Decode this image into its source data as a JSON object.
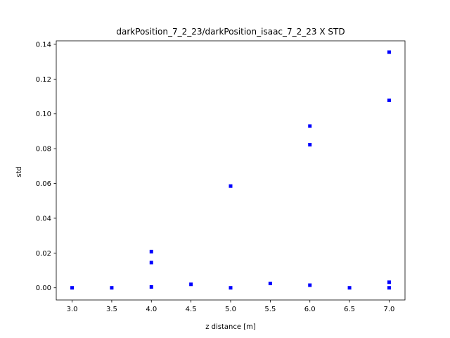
{
  "chart_data": {
    "type": "scatter",
    "title": "darkPosition_7_2_23/darkPosition_isaac_7_2_23 X STD",
    "xlabel": "z distance [m]",
    "ylabel": "std",
    "xlim": [
      2.8,
      7.2
    ],
    "ylim": [
      -0.007,
      0.142
    ],
    "xticks": [
      3.0,
      3.5,
      4.0,
      4.5,
      5.0,
      5.5,
      6.0,
      6.5,
      7.0
    ],
    "xtick_labels": [
      "3.0",
      "3.5",
      "4.0",
      "4.5",
      "5.0",
      "5.5",
      "6.0",
      "6.5",
      "7.0"
    ],
    "yticks": [
      0.0,
      0.02,
      0.04,
      0.06,
      0.08,
      0.1,
      0.12,
      0.14
    ],
    "ytick_labels": [
      "0.00",
      "0.02",
      "0.04",
      "0.06",
      "0.08",
      "0.10",
      "0.12",
      "0.14"
    ],
    "grid": false,
    "marker": "square",
    "color": "#0000ff",
    "series": [
      {
        "points": [
          {
            "x": 3.0,
            "y": 0.0
          },
          {
            "x": 3.5,
            "y": 0.0
          },
          {
            "x": 4.0,
            "y": 0.0208
          },
          {
            "x": 4.0,
            "y": 0.0145
          },
          {
            "x": 4.0,
            "y": 0.0005
          },
          {
            "x": 4.5,
            "y": 0.002
          },
          {
            "x": 5.0,
            "y": 0.0585
          },
          {
            "x": 5.0,
            "y": 0.0
          },
          {
            "x": 5.5,
            "y": 0.0025
          },
          {
            "x": 6.0,
            "y": 0.093
          },
          {
            "x": 6.0,
            "y": 0.0823
          },
          {
            "x": 6.0,
            "y": 0.0015
          },
          {
            "x": 6.5,
            "y": 0.0
          },
          {
            "x": 7.0,
            "y": 0.1355
          },
          {
            "x": 7.0,
            "y": 0.1078
          },
          {
            "x": 7.0,
            "y": 0.0032
          },
          {
            "x": 7.0,
            "y": 0.0
          }
        ]
      }
    ]
  }
}
